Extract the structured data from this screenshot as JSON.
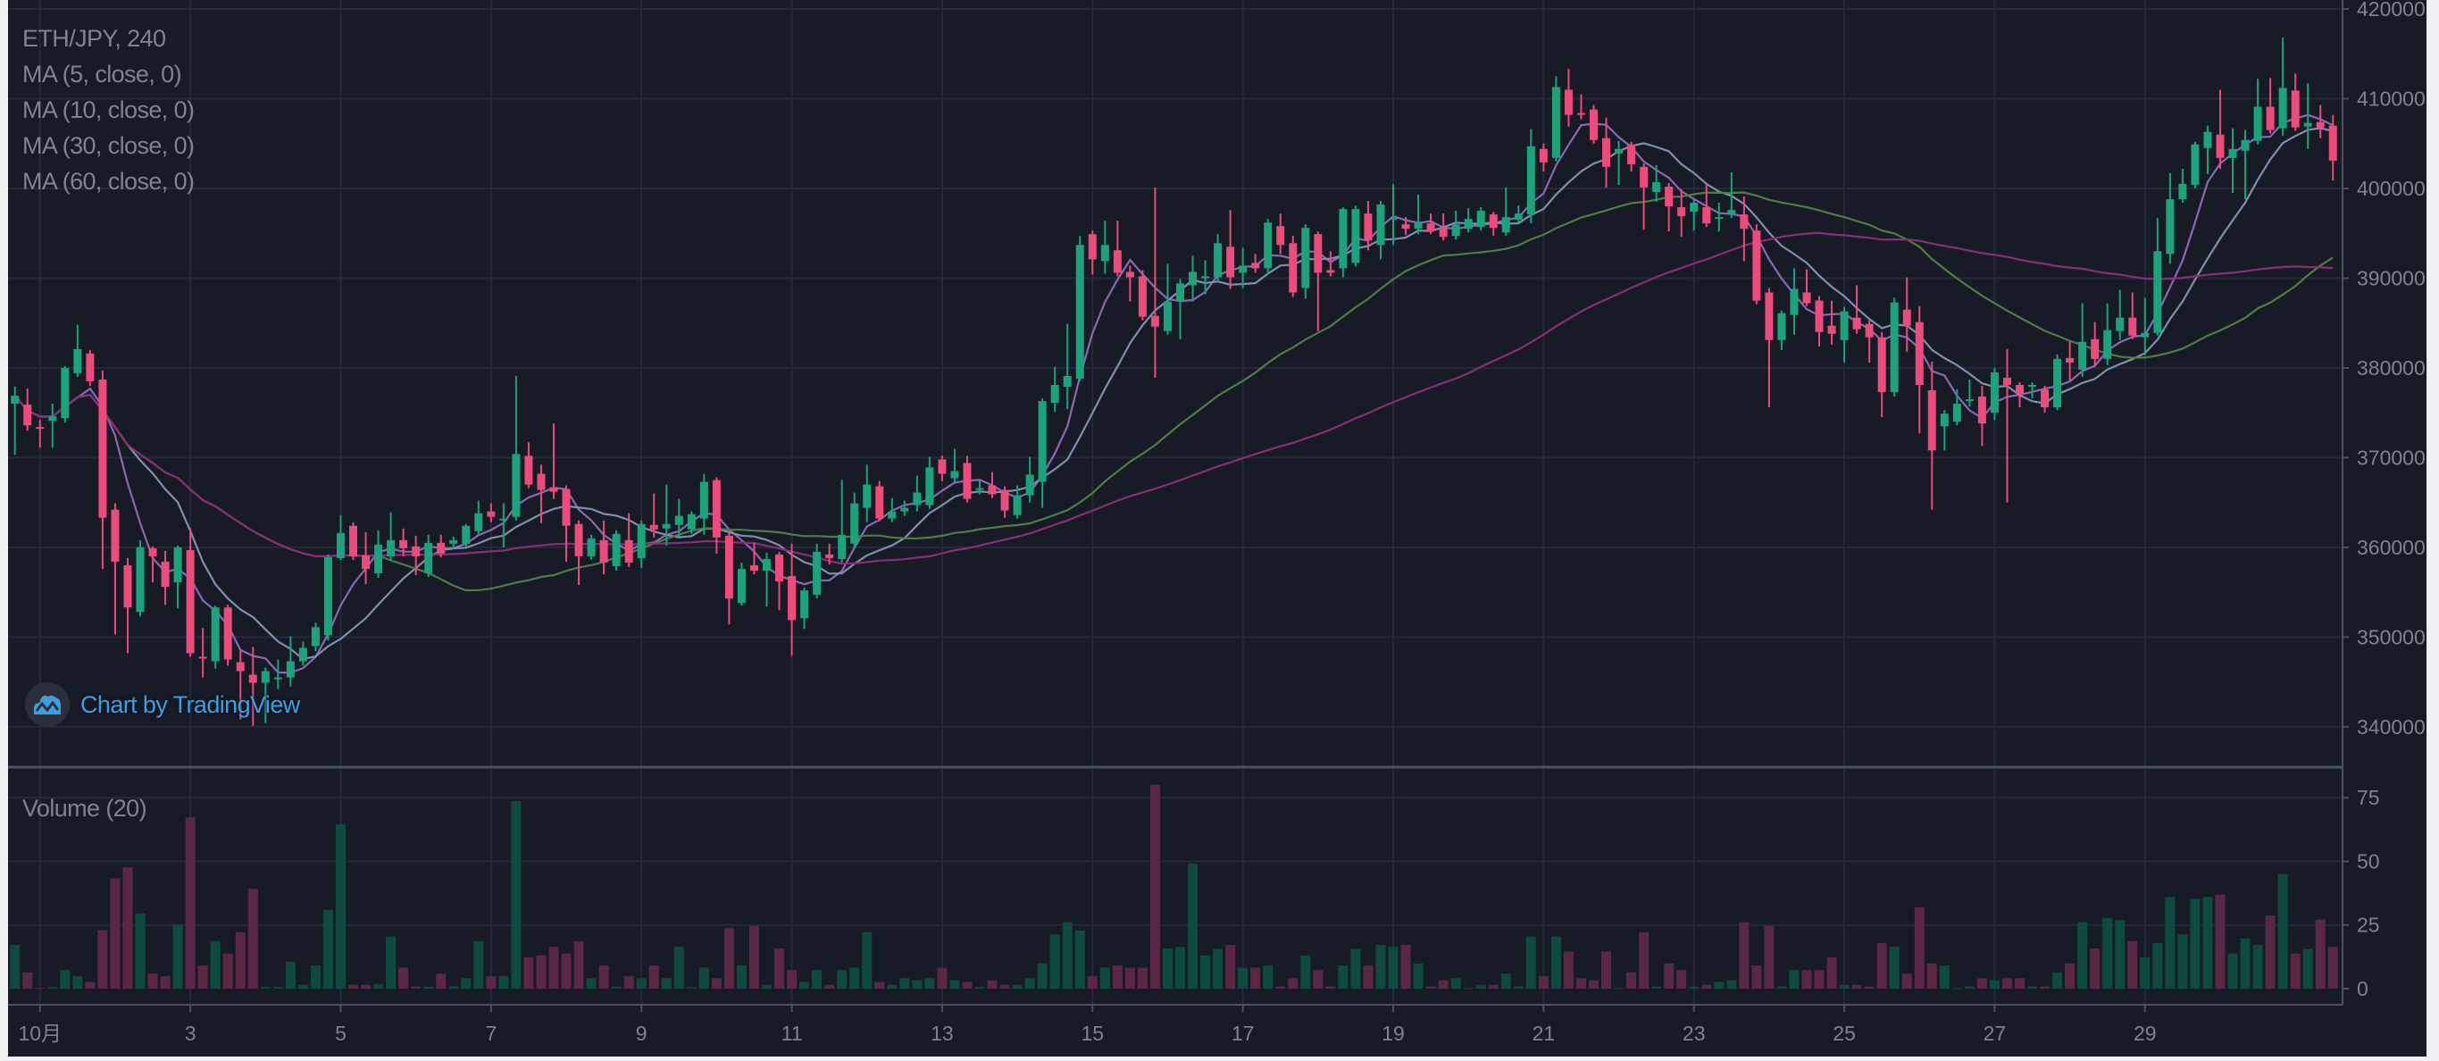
{
  "chart_data": {
    "type": "candlestick",
    "title": "ETH/JPY, 240",
    "indicators": [
      "MA (5, close, 0)",
      "MA (10, close, 0)",
      "MA (30, close, 0)",
      "MA (60, close, 0)"
    ],
    "ma_periods": [
      5,
      10,
      30,
      60
    ],
    "volume_label": "Volume (20)",
    "y_ticks": [
      420000,
      410000,
      400000,
      390000,
      380000,
      370000,
      360000,
      350000,
      340000
    ],
    "ylim": [
      335500,
      421000
    ],
    "volume_ticks": [
      75,
      50,
      25,
      0
    ],
    "volume_ylim": [
      0,
      87
    ],
    "x_tick_labels": [
      "10月",
      "3",
      "5",
      "7",
      "9",
      "11",
      "13",
      "15",
      "17",
      "19",
      "21",
      "23",
      "25",
      "27",
      "29"
    ],
    "x_tick_days": [
      1,
      3,
      5,
      7,
      9,
      11,
      13,
      15,
      17,
      19,
      21,
      23,
      25,
      27,
      29
    ],
    "grid": true,
    "colors": {
      "background": "#161b26",
      "up": "#1ba37c",
      "down": "#ec4b7c",
      "volume_up": "#0f4a40",
      "volume_down": "#5a2844",
      "ma5": "#8d68b0",
      "ma10": "#7f8fae",
      "ma30": "#4f7d45",
      "ma60": "#8a2c76",
      "grid": "#242b37",
      "text": "#7d8490"
    },
    "candles_ohlc": [
      [
        376000,
        377900,
        370300,
        376900
      ],
      [
        375900,
        377700,
        373000,
        373600
      ],
      [
        373400,
        374200,
        371100,
        373200
      ],
      [
        374100,
        376000,
        371100,
        374600
      ],
      [
        374400,
        380200,
        373900,
        380000
      ],
      [
        379400,
        384800,
        379000,
        382100
      ],
      [
        381600,
        382000,
        378000,
        378500
      ],
      [
        378700,
        379700,
        357600,
        363300
      ],
      [
        364200,
        364900,
        350300,
        358400
      ],
      [
        358000,
        358800,
        348200,
        353300
      ],
      [
        352800,
        360800,
        352300,
        360000
      ],
      [
        359900,
        360100,
        356100,
        359000
      ],
      [
        358400,
        359600,
        353600,
        355600
      ],
      [
        356100,
        360200,
        353200,
        360000
      ],
      [
        359700,
        362100,
        347800,
        348200
      ],
      [
        347800,
        351000,
        345500,
        347600
      ],
      [
        347300,
        353500,
        346500,
        353300
      ],
      [
        353300,
        353600,
        346800,
        347500
      ],
      [
        347200,
        348600,
        340800,
        346200
      ],
      [
        345800,
        348900,
        340100,
        344900
      ],
      [
        344900,
        346600,
        340400,
        346200
      ],
      [
        345400,
        347500,
        344200,
        345500
      ],
      [
        345500,
        350100,
        344500,
        347300
      ],
      [
        347300,
        349500,
        346800,
        348800
      ],
      [
        349000,
        351600,
        348400,
        351100
      ],
      [
        350200,
        359200,
        349600,
        358900
      ],
      [
        358800,
        363600,
        358600,
        361600
      ],
      [
        362400,
        362800,
        358600,
        359000
      ],
      [
        359100,
        361700,
        355900,
        357600
      ],
      [
        357100,
        361900,
        356600,
        360300
      ],
      [
        359000,
        363900,
        358600,
        360800
      ],
      [
        360800,
        362100,
        359000,
        359900
      ],
      [
        360100,
        361300,
        356900,
        359000
      ],
      [
        357100,
        361400,
        356700,
        360500
      ],
      [
        360500,
        361400,
        358900,
        359300
      ],
      [
        360400,
        361200,
        359800,
        360800
      ],
      [
        360400,
        362600,
        360000,
        362400
      ],
      [
        361800,
        365200,
        361400,
        363800
      ],
      [
        364000,
        364900,
        362800,
        363400
      ],
      [
        363200,
        364900,
        360000,
        363200
      ],
      [
        363400,
        379100,
        363000,
        370400
      ],
      [
        370200,
        371700,
        366600,
        367000
      ],
      [
        368200,
        369200,
        362700,
        366400
      ],
      [
        366700,
        373800,
        365400,
        366200
      ],
      [
        366500,
        366900,
        358400,
        362400
      ],
      [
        362600,
        363000,
        355800,
        359000
      ],
      [
        359000,
        361400,
        358600,
        361000
      ],
      [
        360800,
        363000,
        357000,
        358300
      ],
      [
        357900,
        361900,
        357400,
        361500
      ],
      [
        360800,
        363800,
        357800,
        358300
      ],
      [
        358800,
        363000,
        357700,
        362600
      ],
      [
        362500,
        366000,
        361100,
        362000
      ],
      [
        362100,
        367000,
        360200,
        362600
      ],
      [
        362500,
        365400,
        361200,
        363500
      ],
      [
        362000,
        364000,
        361500,
        363700
      ],
      [
        363200,
        368200,
        361400,
        367300
      ],
      [
        367500,
        367800,
        359300,
        361100
      ],
      [
        361300,
        361600,
        351400,
        354300
      ],
      [
        353800,
        358300,
        353500,
        357600
      ],
      [
        358000,
        360500,
        357000,
        357400
      ],
      [
        357400,
        359400,
        353400,
        358700
      ],
      [
        359200,
        359500,
        353000,
        356200
      ],
      [
        356800,
        360400,
        347900,
        351900
      ],
      [
        352100,
        355500,
        350900,
        355200
      ],
      [
        354700,
        360400,
        354300,
        359500
      ],
      [
        359200,
        360400,
        358100,
        358800
      ],
      [
        358700,
        367500,
        358300,
        361400
      ],
      [
        360400,
        366100,
        360000,
        364900
      ],
      [
        364400,
        369200,
        362800,
        367000
      ],
      [
        366800,
        367400,
        362900,
        363200
      ],
      [
        363200,
        365500,
        362800,
        364000
      ],
      [
        364000,
        365200,
        363500,
        364400
      ],
      [
        364700,
        368000,
        364000,
        366100
      ],
      [
        364700,
        370100,
        364300,
        368900
      ],
      [
        369800,
        370200,
        367400,
        368200
      ],
      [
        367700,
        371000,
        367300,
        368500
      ],
      [
        369400,
        370200,
        365000,
        365400
      ],
      [
        366600,
        367400,
        365900,
        366600
      ],
      [
        366900,
        368400,
        365500,
        365900
      ],
      [
        366400,
        366800,
        363300,
        364100
      ],
      [
        363600,
        366900,
        363200,
        365800
      ],
      [
        365800,
        370100,
        365000,
        368100
      ],
      [
        367300,
        376600,
        364400,
        376300
      ],
      [
        376100,
        380100,
        375100,
        378100
      ],
      [
        377900,
        384900,
        375400,
        379100
      ],
      [
        378800,
        394700,
        378500,
        393700
      ],
      [
        394900,
        395300,
        390400,
        392100
      ],
      [
        391900,
        396400,
        390500,
        393700
      ],
      [
        393100,
        396400,
        390200,
        390600
      ],
      [
        390700,
        391400,
        387400,
        390100
      ],
      [
        390200,
        390900,
        385300,
        385700
      ],
      [
        385800,
        400100,
        378900,
        384600
      ],
      [
        384100,
        391600,
        383700,
        387400
      ],
      [
        387400,
        389900,
        383200,
        389400
      ],
      [
        389200,
        392500,
        387400,
        390700
      ],
      [
        390200,
        392000,
        388200,
        390200
      ],
      [
        390100,
        394900,
        389600,
        393900
      ],
      [
        393500,
        397600,
        388800,
        390100
      ],
      [
        390600,
        393400,
        388900,
        391400
      ],
      [
        391700,
        392700,
        390600,
        391100
      ],
      [
        391100,
        396600,
        390500,
        396200
      ],
      [
        395800,
        397200,
        392700,
        393700
      ],
      [
        393900,
        394700,
        387900,
        388400
      ],
      [
        388900,
        396000,
        387700,
        395600
      ],
      [
        394900,
        395200,
        384100,
        390600
      ],
      [
        390900,
        393000,
        390200,
        390600
      ],
      [
        391100,
        397900,
        390100,
        397700
      ],
      [
        391700,
        398100,
        391300,
        397700
      ],
      [
        397200,
        398600,
        393100,
        394200
      ],
      [
        393700,
        398600,
        392100,
        398200
      ],
      [
        396700,
        400500,
        393700,
        396700
      ],
      [
        396000,
        396800,
        394800,
        395500
      ],
      [
        395500,
        399300,
        394900,
        396200
      ],
      [
        396100,
        397200,
        394900,
        395200
      ],
      [
        395600,
        397200,
        394200,
        394600
      ],
      [
        394700,
        397500,
        394300,
        396000
      ],
      [
        395500,
        397800,
        395100,
        396600
      ],
      [
        395700,
        397900,
        395300,
        397500
      ],
      [
        397100,
        397400,
        394700,
        395600
      ],
      [
        395100,
        400100,
        394700,
        396800
      ],
      [
        396500,
        398100,
        396200,
        397200
      ],
      [
        397100,
        406600,
        396100,
        404700
      ],
      [
        404400,
        405000,
        401900,
        402900
      ],
      [
        403400,
        412500,
        403000,
        411300
      ],
      [
        411000,
        413300,
        406900,
        408200
      ],
      [
        408400,
        410500,
        407700,
        408200
      ],
      [
        408800,
        409300,
        405000,
        405400
      ],
      [
        405600,
        407900,
        400100,
        402400
      ],
      [
        403900,
        405300,
        400400,
        404400
      ],
      [
        404900,
        405200,
        401900,
        402700
      ],
      [
        402400,
        402800,
        395400,
        400100
      ],
      [
        399600,
        402600,
        398500,
        400700
      ],
      [
        400200,
        400600,
        395200,
        398000
      ],
      [
        397900,
        399900,
        394600,
        396900
      ],
      [
        397400,
        398800,
        395300,
        398400
      ],
      [
        397900,
        400500,
        395700,
        396100
      ],
      [
        396800,
        398400,
        395200,
        396800
      ],
      [
        397200,
        401800,
        396700,
        397600
      ],
      [
        397100,
        399100,
        391900,
        395500
      ],
      [
        395300,
        396000,
        387100,
        387500
      ],
      [
        388400,
        388900,
        375600,
        383100
      ],
      [
        383100,
        386400,
        382000,
        386100
      ],
      [
        385900,
        391100,
        383700,
        388800
      ],
      [
        388400,
        391000,
        386900,
        387200
      ],
      [
        387500,
        388000,
        382400,
        384000
      ],
      [
        384700,
        387500,
        382600,
        383800
      ],
      [
        383100,
        386800,
        380600,
        386300
      ],
      [
        385600,
        389200,
        383800,
        384300
      ],
      [
        384900,
        385300,
        380600,
        383400
      ],
      [
        383400,
        384000,
        374500,
        377300
      ],
      [
        377300,
        387800,
        376800,
        387300
      ],
      [
        386500,
        390100,
        381800,
        384700
      ],
      [
        385100,
        386900,
        372700,
        378100
      ],
      [
        377500,
        380700,
        364200,
        370800
      ],
      [
        373500,
        375300,
        370800,
        374900
      ],
      [
        374000,
        377600,
        373600,
        376000
      ],
      [
        376300,
        378700,
        375700,
        376500
      ],
      [
        376800,
        378000,
        371300,
        373800
      ],
      [
        375000,
        380000,
        374200,
        379500
      ],
      [
        378900,
        382100,
        365000,
        378100
      ],
      [
        378100,
        378400,
        375600,
        377100
      ],
      [
        378100,
        378400,
        376600,
        378100
      ],
      [
        377600,
        378000,
        375000,
        375600
      ],
      [
        375600,
        381500,
        375300,
        381000
      ],
      [
        381100,
        382900,
        378600,
        380600
      ],
      [
        379800,
        387200,
        379000,
        382900
      ],
      [
        383200,
        385100,
        380200,
        381000
      ],
      [
        381000,
        387200,
        380300,
        384200
      ],
      [
        384100,
        388700,
        383100,
        385600
      ],
      [
        385600,
        388400,
        383200,
        383600
      ],
      [
        383400,
        387800,
        381400,
        383900
      ],
      [
        383900,
        396700,
        383600,
        393000
      ],
      [
        392700,
        401700,
        391600,
        398800
      ],
      [
        398800,
        402200,
        398400,
        400500
      ],
      [
        400400,
        405200,
        400000,
        404900
      ],
      [
        404500,
        407000,
        401600,
        406300
      ],
      [
        406000,
        411000,
        402200,
        403400
      ],
      [
        403400,
        406700,
        399500,
        404400
      ],
      [
        404200,
        406500,
        398800,
        405400
      ],
      [
        405300,
        412200,
        404900,
        409100
      ],
      [
        409100,
        412300,
        406100,
        406500
      ],
      [
        406700,
        416800,
        405900,
        411200
      ],
      [
        410900,
        412800,
        406400,
        406800
      ],
      [
        406900,
        411700,
        404400,
        407300
      ],
      [
        407400,
        409300,
        405600,
        406800
      ],
      [
        407000,
        408200,
        400900,
        403100
      ]
    ],
    "volume": [
      17.2,
      6.4,
      0.3,
      0.6,
      7.3,
      4.9,
      2.6,
      23.0,
      43.3,
      47.6,
      29.5,
      5.9,
      4.9,
      25.2,
      67.3,
      9.1,
      18.7,
      13.8,
      22.2,
      39.2,
      0.6,
      0.6,
      10.5,
      1.5,
      9.1,
      31.0,
      64.6,
      1.5,
      1.5,
      1.8,
      20.5,
      8.2,
      0.8,
      0.8,
      5.9,
      0.8,
      4.1,
      18.7,
      4.9,
      4.9,
      73.7,
      12.3,
      13.1,
      16.4,
      13.8,
      18.7,
      4.1,
      9.1,
      0.8,
      4.9,
      4.1,
      9.1,
      4.1,
      16.4,
      0.6,
      8.2,
      4.1,
      23.8,
      9.1,
      24.6,
      1.5,
      15.8,
      7.3,
      2.6,
      7.3,
      1.5,
      7.3,
      8.2,
      22.2,
      2.6,
      1.5,
      4.1,
      3.3,
      4.1,
      8.2,
      3.3,
      2.6,
      0.6,
      3.3,
      1.5,
      1.5,
      4.1,
      9.9,
      21.3,
      26.1,
      22.8,
      4.9,
      8.2,
      9.1,
      8.2,
      8.2,
      80.1,
      15.8,
      16.4,
      49.1,
      13.1,
      15.6,
      17.2,
      8.2,
      8.2,
      9.1,
      0.8,
      4.1,
      13.1,
      7.3,
      0.8,
      9.1,
      15.6,
      9.1,
      17.2,
      16.4,
      17.2,
      9.9,
      0.8,
      3.3,
      4.1,
      0.2,
      1.5,
      1.5,
      5.9,
      0.8,
      20.5,
      4.9,
      20.5,
      14.6,
      4.1,
      3.3,
      14.6,
      0.2,
      6.4,
      22.2,
      0.8,
      9.9,
      7.3,
      0.8,
      1.5,
      2.6,
      3.3,
      26.1,
      9.1,
      24.6,
      0.8,
      7.3,
      7.3,
      7.3,
      12.3,
      1.5,
      1.5,
      0.8,
      17.9,
      16.4,
      5.9,
      31.9,
      9.9,
      9.1,
      0.2,
      0.8,
      4.1,
      3.3,
      4.1,
      4.1,
      0.8,
      0.8,
      6.4,
      9.9,
      26.1,
      15.8,
      27.8,
      26.9,
      18.7,
      12.3,
      17.9,
      36.0,
      21.3,
      35.3,
      36.0,
      36.9,
      13.8,
      19.7,
      17.2,
      28.7,
      45.0,
      13.8,
      15.6,
      27.1,
      16.4
    ]
  },
  "watermark": {
    "text": "Chart by TradingView",
    "icon": "tradingview-logo-icon"
  }
}
